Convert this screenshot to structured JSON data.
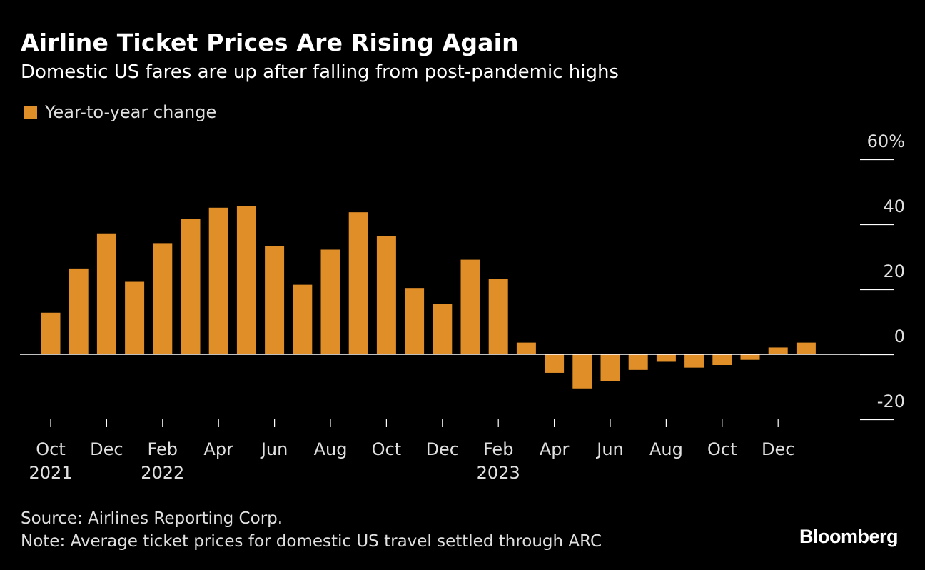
{
  "title": "Airline Ticket Prices Are Rising Again",
  "subtitle": "Domestic US fares are up after falling from post-pandemic highs",
  "legend": {
    "label": "Year-to-year change",
    "color": "#e08e28"
  },
  "source": "Source: Airlines Reporting Corp.",
  "note": "Note: Average ticket prices for domestic US travel settled through ARC",
  "brand": "Bloomberg",
  "chart_data": {
    "type": "bar",
    "title": "Airline Ticket Prices Are Rising Again",
    "subtitle": "Domestic US fares are up after falling from post-pandemic highs",
    "xlabel": "",
    "ylabel": "",
    "ylim": [
      -20,
      60
    ],
    "yticks": [
      60,
      40,
      20,
      0,
      -20
    ],
    "ytick_labels": [
      "60%",
      "40",
      "20",
      "0",
      "-20"
    ],
    "grid": false,
    "legend_position": "top-left",
    "bar_color": "#e08e28",
    "categories": [
      "Oct 2021",
      "Nov 2021",
      "Dec 2021",
      "Jan 2022",
      "Feb 2022",
      "Mar 2022",
      "Apr 2022",
      "May 2022",
      "Jun 2022",
      "Jul 2022",
      "Aug 2022",
      "Sep 2022",
      "Oct 2022",
      "Nov 2022",
      "Dec 2022",
      "Jan 2023",
      "Feb 2023",
      "Mar 2023",
      "Apr 2023",
      "May 2023",
      "Jun 2023",
      "Jul 2023",
      "Aug 2023",
      "Sep 2023",
      "Oct 2023",
      "Nov 2023",
      "Dec 2023",
      "Jan 2024"
    ],
    "series": [
      {
        "name": "Year-to-year change",
        "values": [
          12.8,
          26.4,
          37.2,
          22.3,
          34.2,
          41.6,
          45.1,
          45.6,
          33.4,
          21.4,
          32.2,
          43.7,
          36.3,
          20.4,
          15.5,
          29.1,
          23.2,
          3.6,
          -5.7,
          -10.5,
          -8.2,
          -4.8,
          -2.3,
          -4.1,
          -3.3,
          -1.7,
          2.1,
          3.6
        ]
      }
    ],
    "x_tick_labels": [
      {
        "index": 0,
        "month": "Oct",
        "year": "2021"
      },
      {
        "index": 2,
        "month": "Dec",
        "year": ""
      },
      {
        "index": 4,
        "month": "Feb",
        "year": "2022"
      },
      {
        "index": 6,
        "month": "Apr",
        "year": ""
      },
      {
        "index": 8,
        "month": "Jun",
        "year": ""
      },
      {
        "index": 10,
        "month": "Aug",
        "year": ""
      },
      {
        "index": 12,
        "month": "Oct",
        "year": ""
      },
      {
        "index": 14,
        "month": "Dec",
        "year": ""
      },
      {
        "index": 16,
        "month": "Feb",
        "year": "2023"
      },
      {
        "index": 18,
        "month": "Apr",
        "year": ""
      },
      {
        "index": 20,
        "month": "Jun",
        "year": ""
      },
      {
        "index": 22,
        "month": "Aug",
        "year": ""
      },
      {
        "index": 24,
        "month": "Oct",
        "year": ""
      },
      {
        "index": 26,
        "month": "Dec",
        "year": ""
      }
    ]
  }
}
